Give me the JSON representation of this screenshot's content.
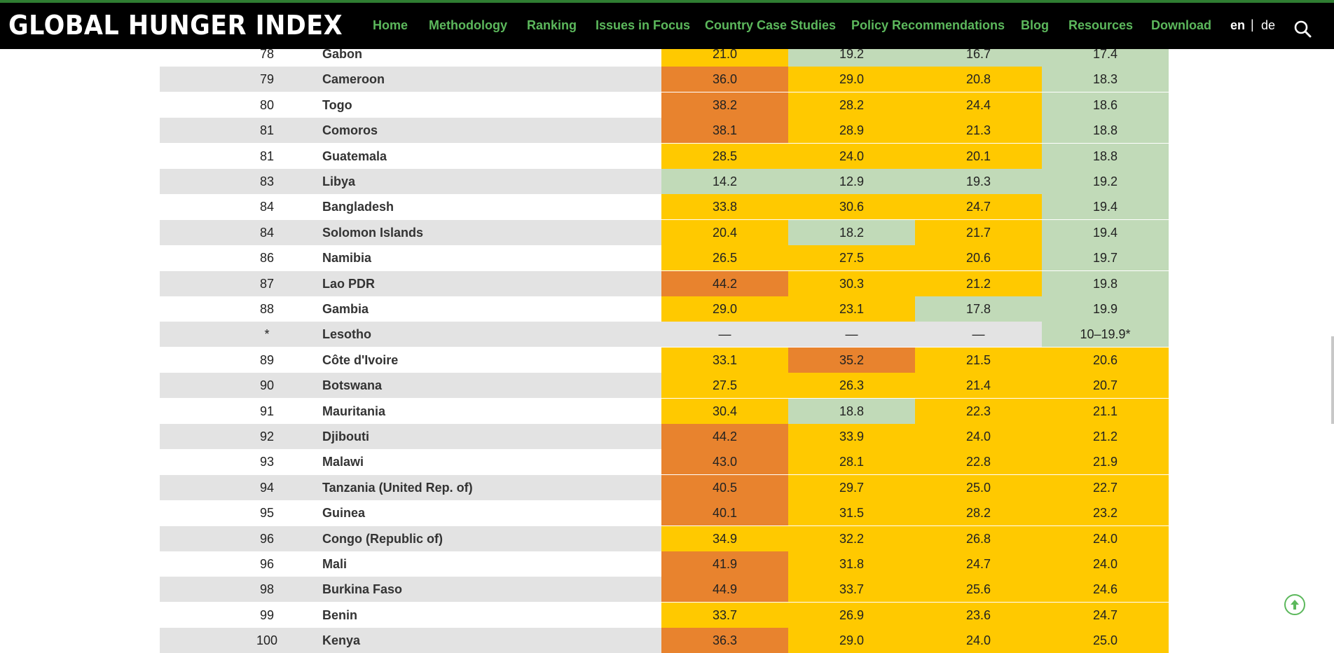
{
  "header": {
    "logo": "GLOBAL HUNGER INDEX",
    "nav": [
      "Home",
      "Methodology",
      "Ranking",
      "Issues in Focus",
      "Country Case Studies",
      "Policy Recommendations",
      "Blog",
      "Resources",
      "Download"
    ],
    "lang_en": "en",
    "lang_sep": "|",
    "lang_de": "de"
  },
  "colors": {
    "orange": "#e8832e",
    "yellow": "#ffc900",
    "green": "#c1dab8",
    "row_gray": "#e3e3e3",
    "row_white": "#ffffff",
    "nav_green": "#5cb85c"
  },
  "table": {
    "rows": [
      {
        "rank": "78",
        "country": "Gabon",
        "values": [
          "21.0",
          "19.2",
          "16.7",
          "17.4"
        ],
        "levels": [
          "y",
          "g",
          "g",
          "g"
        ]
      },
      {
        "rank": "79",
        "country": "Cameroon",
        "values": [
          "36.0",
          "29.0",
          "20.8",
          "18.3"
        ],
        "levels": [
          "o",
          "y",
          "y",
          "g"
        ]
      },
      {
        "rank": "80",
        "country": "Togo",
        "values": [
          "38.2",
          "28.2",
          "24.4",
          "18.6"
        ],
        "levels": [
          "o",
          "y",
          "y",
          "g"
        ]
      },
      {
        "rank": "81",
        "country": "Comoros",
        "values": [
          "38.1",
          "28.9",
          "21.3",
          "18.8"
        ],
        "levels": [
          "o",
          "y",
          "y",
          "g"
        ]
      },
      {
        "rank": "81",
        "country": "Guatemala",
        "values": [
          "28.5",
          "24.0",
          "20.1",
          "18.8"
        ],
        "levels": [
          "y",
          "y",
          "y",
          "g"
        ]
      },
      {
        "rank": "83",
        "country": "Libya",
        "values": [
          "14.2",
          "12.9",
          "19.3",
          "19.2"
        ],
        "levels": [
          "g",
          "g",
          "g",
          "g"
        ]
      },
      {
        "rank": "84",
        "country": "Bangladesh",
        "values": [
          "33.8",
          "30.6",
          "24.7",
          "19.4"
        ],
        "levels": [
          "y",
          "y",
          "y",
          "g"
        ]
      },
      {
        "rank": "84",
        "country": "Solomon Islands",
        "values": [
          "20.4",
          "18.2",
          "21.7",
          "19.4"
        ],
        "levels": [
          "y",
          "g",
          "y",
          "g"
        ]
      },
      {
        "rank": "86",
        "country": "Namibia",
        "values": [
          "26.5",
          "27.5",
          "20.6",
          "19.7"
        ],
        "levels": [
          "y",
          "y",
          "y",
          "g"
        ]
      },
      {
        "rank": "87",
        "country": "Lao PDR",
        "values": [
          "44.2",
          "30.3",
          "21.2",
          "19.8"
        ],
        "levels": [
          "o",
          "y",
          "y",
          "g"
        ]
      },
      {
        "rank": "88",
        "country": "Gambia",
        "values": [
          "29.0",
          "23.1",
          "17.8",
          "19.9"
        ],
        "levels": [
          "y",
          "y",
          "g",
          "g"
        ]
      },
      {
        "rank": "*",
        "country": "Lesotho",
        "values": [
          "—",
          "—",
          "—",
          "10–19.9*"
        ],
        "levels": [
          "n",
          "n",
          "n",
          "g"
        ]
      },
      {
        "rank": "89",
        "country": "Côte d'Ivoire",
        "values": [
          "33.1",
          "35.2",
          "21.5",
          "20.6"
        ],
        "levels": [
          "y",
          "o",
          "y",
          "y"
        ]
      },
      {
        "rank": "90",
        "country": "Botswana",
        "values": [
          "27.5",
          "26.3",
          "21.4",
          "20.7"
        ],
        "levels": [
          "y",
          "y",
          "y",
          "y"
        ]
      },
      {
        "rank": "91",
        "country": "Mauritania",
        "values": [
          "30.4",
          "18.8",
          "22.3",
          "21.1"
        ],
        "levels": [
          "y",
          "g",
          "y",
          "y"
        ]
      },
      {
        "rank": "92",
        "country": "Djibouti",
        "values": [
          "44.2",
          "33.9",
          "24.0",
          "21.2"
        ],
        "levels": [
          "o",
          "y",
          "y",
          "y"
        ]
      },
      {
        "rank": "93",
        "country": "Malawi",
        "values": [
          "43.0",
          "28.1",
          "22.8",
          "21.9"
        ],
        "levels": [
          "o",
          "y",
          "y",
          "y"
        ]
      },
      {
        "rank": "94",
        "country": "Tanzania (United Rep. of)",
        "values": [
          "40.5",
          "29.7",
          "25.0",
          "22.7"
        ],
        "levels": [
          "o",
          "y",
          "y",
          "y"
        ]
      },
      {
        "rank": "95",
        "country": "Guinea",
        "values": [
          "40.1",
          "31.5",
          "28.2",
          "23.2"
        ],
        "levels": [
          "o",
          "y",
          "y",
          "y"
        ]
      },
      {
        "rank": "96",
        "country": "Congo (Republic of)",
        "values": [
          "34.9",
          "32.2",
          "26.8",
          "24.0"
        ],
        "levels": [
          "y",
          "y",
          "y",
          "y"
        ]
      },
      {
        "rank": "96",
        "country": "Mali",
        "values": [
          "41.9",
          "31.8",
          "24.7",
          "24.0"
        ],
        "levels": [
          "o",
          "y",
          "y",
          "y"
        ]
      },
      {
        "rank": "98",
        "country": "Burkina Faso",
        "values": [
          "44.9",
          "33.7",
          "25.6",
          "24.6"
        ],
        "levels": [
          "o",
          "y",
          "y",
          "y"
        ]
      },
      {
        "rank": "99",
        "country": "Benin",
        "values": [
          "33.7",
          "26.9",
          "23.6",
          "24.7"
        ],
        "levels": [
          "y",
          "y",
          "y",
          "y"
        ]
      },
      {
        "rank": "100",
        "country": "Kenya",
        "values": [
          "36.3",
          "29.0",
          "24.0",
          "25.0"
        ],
        "levels": [
          "o",
          "y",
          "y",
          "y"
        ]
      }
    ]
  },
  "icons": {
    "search": "search-icon",
    "scroll_top": "arrow-up-circle-icon"
  }
}
